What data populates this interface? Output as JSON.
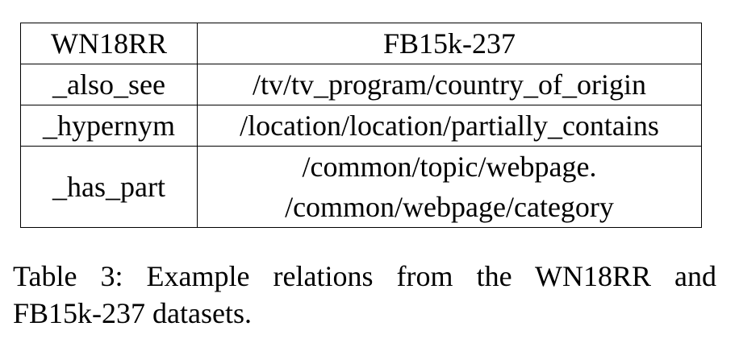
{
  "table": {
    "headers": [
      "WN18RR",
      "FB15k-237"
    ],
    "rows": [
      {
        "wn18rr": "_also_see",
        "fb15k237": [
          "/tv/tv_program/country_of_origin"
        ]
      },
      {
        "wn18rr": "_hypernym",
        "fb15k237": [
          "/location/location/partially_contains"
        ]
      },
      {
        "wn18rr": "_has_part",
        "fb15k237": [
          "/common/topic/webpage.",
          "/common/webpage/category"
        ]
      }
    ]
  },
  "caption": {
    "line1": "Table 3:  Example relations from the WN18RR and",
    "line2": "FB15k-237 datasets."
  }
}
